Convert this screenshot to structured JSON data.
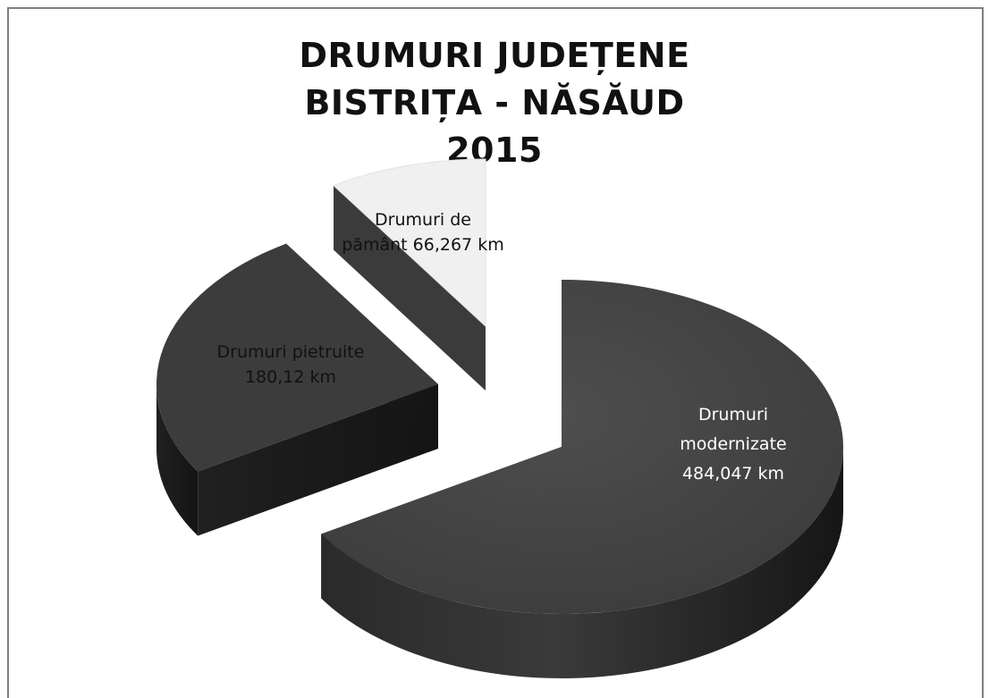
{
  "chart_data": {
    "type": "pie",
    "title_lines": [
      "DRUMURI  JUDEȚENE",
      "BISTRIȚA - NĂSĂUD",
      "2015"
    ],
    "slices": [
      {
        "label_lines": [
          "Drumuri",
          "modernizate",
          "484,047 km"
        ],
        "value": 484.047,
        "color": "#464646",
        "exploded": false
      },
      {
        "label_lines": [
          "Drumuri de",
          "pământ 66,267 km"
        ],
        "value": 66.267,
        "color": "#f0f0f0",
        "exploded": true
      },
      {
        "label_lines": [
          "Drumuri pietruite",
          "180,12 km"
        ],
        "value": 180.12,
        "color": "#3c3c3c",
        "exploded": true
      }
    ],
    "legend": "none",
    "style": "3d-exploded"
  }
}
